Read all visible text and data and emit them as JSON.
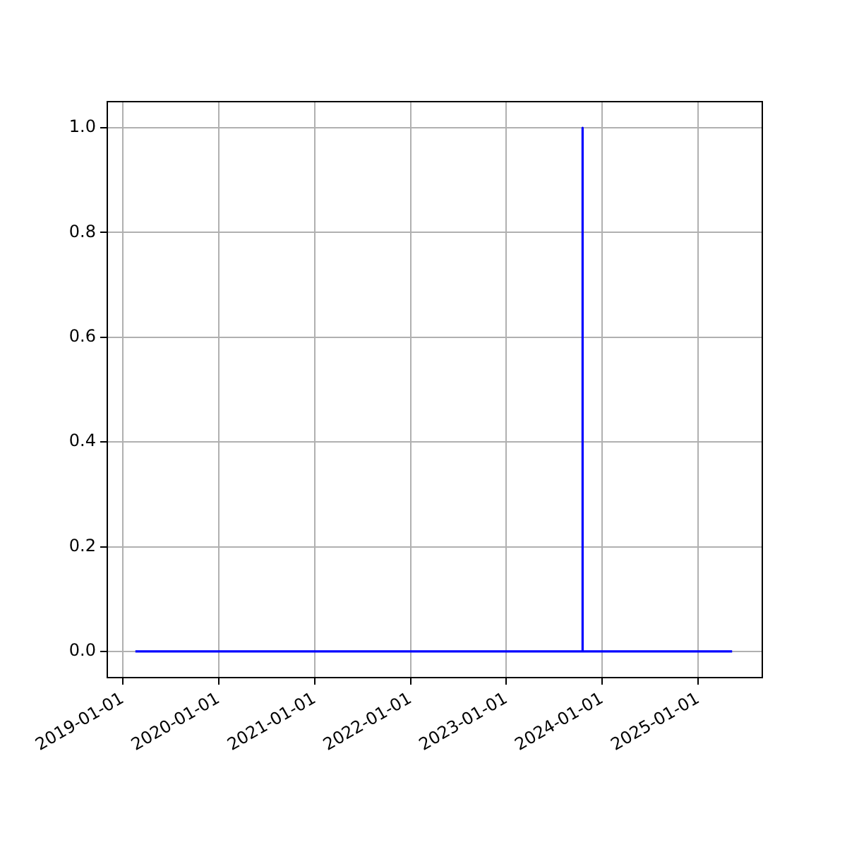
{
  "chart_data": {
    "type": "line",
    "x": [
      "2019-02-18",
      "2023-10-17",
      "2023-10-18",
      "2023-10-19",
      "2025-05-10"
    ],
    "series": [
      {
        "color": "#0000ff",
        "values": [
          0,
          0,
          1,
          0,
          0
        ]
      }
    ],
    "xlim": [
      "2018-11-03",
      "2025-09-02"
    ],
    "xticks": [
      "2019-01-01",
      "2020-01-01",
      "2021-01-01",
      "2022-01-01",
      "2023-01-01",
      "2024-01-01",
      "2025-01-01"
    ],
    "ylim": [
      -0.05,
      1.05
    ],
    "yticks": [
      {
        "value": 0,
        "label": "0.0"
      },
      {
        "value": 0.2,
        "label": "0.2"
      },
      {
        "value": 0.4,
        "label": "0.4"
      },
      {
        "value": 0.6,
        "label": "0.6"
      },
      {
        "value": 0.8,
        "label": "0.8"
      },
      {
        "value": 1,
        "label": "1.0"
      }
    ],
    "grid": true,
    "legend": false,
    "marker": "none",
    "line_style": "solid"
  }
}
